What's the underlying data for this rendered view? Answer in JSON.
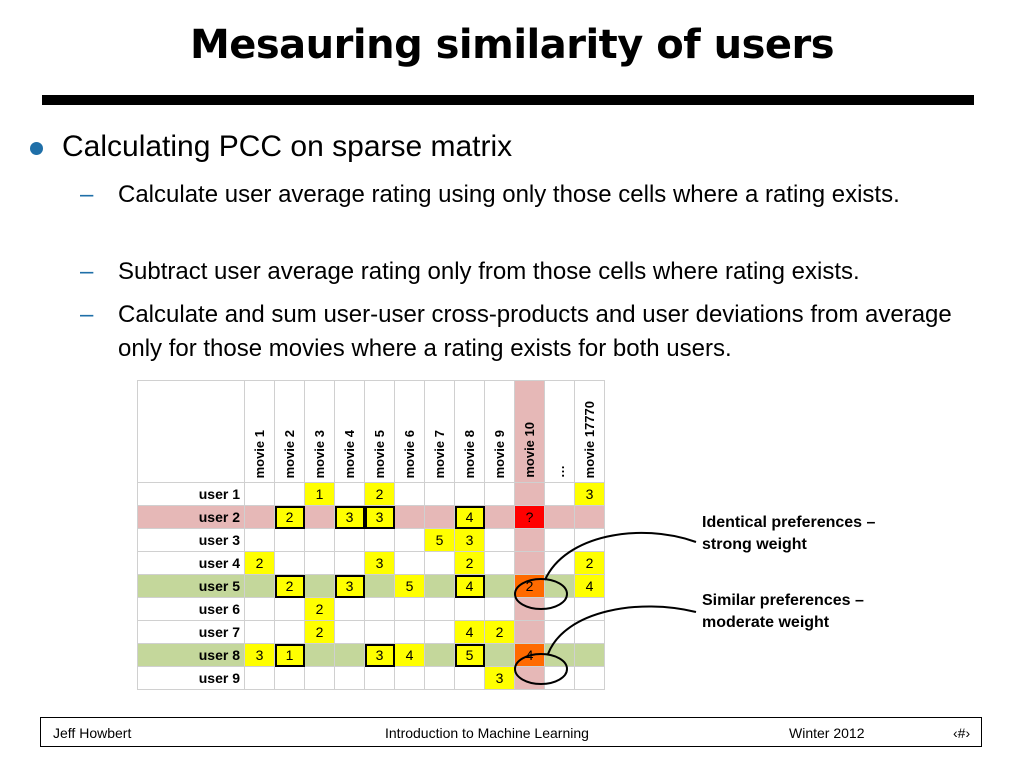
{
  "title": "Mesauring similarity of users",
  "bullets": {
    "main": "Calculating PCC on sparse matrix",
    "sub": [
      "Calculate user average rating using only those cells where a rating exists.",
      "Subtract user average rating only from those cells where rating exists.",
      "Calculate and sum user-user cross-products and user deviations from average only for those movies where a rating exists for both users."
    ]
  },
  "matrix": {
    "columns": [
      "movie 1",
      "movie 2",
      "movie 3",
      "movie 4",
      "movie 5",
      "movie 6",
      "movie 7",
      "movie 8",
      "movie 9",
      "movie 10",
      "…",
      "movie 17770"
    ],
    "rows": [
      {
        "user": "user 1",
        "cells": [
          "",
          "",
          "1",
          "",
          "2",
          "",
          "",
          "",
          "",
          "",
          "",
          "3"
        ]
      },
      {
        "user": "user 2",
        "cells": [
          "",
          "2",
          "",
          "3",
          "3",
          "",
          "",
          "4",
          "",
          "?",
          "",
          ""
        ]
      },
      {
        "user": "user 3",
        "cells": [
          "",
          "",
          "",
          "",
          "",
          "",
          "5",
          "3",
          "",
          "",
          "",
          ""
        ]
      },
      {
        "user": "user 4",
        "cells": [
          "2",
          "",
          "",
          "",
          "3",
          "",
          "",
          "2",
          "",
          "",
          "",
          "2"
        ]
      },
      {
        "user": "user 5",
        "cells": [
          "",
          "2",
          "",
          "3",
          "",
          "5",
          "",
          "4",
          "",
          "2",
          "",
          "4"
        ]
      },
      {
        "user": "user 6",
        "cells": [
          "",
          "",
          "2",
          "",
          "",
          "",
          "",
          "",
          "",
          "",
          "",
          ""
        ]
      },
      {
        "user": "user 7",
        "cells": [
          "",
          "",
          "2",
          "",
          "",
          "",
          "",
          "4",
          "2",
          "",
          "",
          ""
        ]
      },
      {
        "user": "user 8",
        "cells": [
          "3",
          "1",
          "",
          "",
          "3",
          "4",
          "",
          "5",
          "",
          "4",
          "",
          ""
        ]
      },
      {
        "user": "user 9",
        "cells": [
          "",
          "",
          "",
          "",
          "",
          "",
          "",
          "",
          "3",
          "",
          "",
          ""
        ]
      }
    ]
  },
  "callouts": {
    "identical": [
      "Identical preferences –",
      "strong weight"
    ],
    "similar": [
      "Similar preferences –",
      "moderate weight"
    ]
  },
  "footer": {
    "author": "Jeff Howbert",
    "course": "Introduction to Machine Learning",
    "term": "Winter 2012",
    "page": "‹#›"
  },
  "colors": {
    "bullet": "#1f6fa8",
    "highlight_row_target": "#e6b8b7",
    "highlight_row_similar": "#c4d79b",
    "rating_cell": "#ffff00",
    "unknown_cell": "#ff0000",
    "compared_cell": "#ff6a00"
  }
}
